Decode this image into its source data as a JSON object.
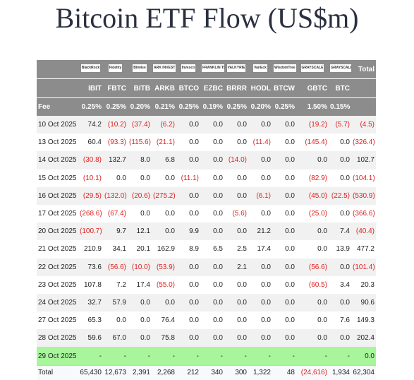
{
  "title": "Bitcoin ETF Flow (US$m)",
  "table": {
    "issuers": [
      "BlackRock",
      "Fidelity",
      "Bitwise",
      "ARK INVEST",
      "Invesco",
      "FRANKLIN TEMPLETON",
      "VALKYRIE",
      "VanEck",
      "WisdomTree",
      "GRAYSCALE",
      "GRAYSCALE"
    ],
    "total_header": "Total",
    "tickers": [
      "IBIT",
      "FBTC",
      "BITB",
      "ARKB",
      "BTCO",
      "EZBC",
      "BRRR",
      "HODL",
      "BTCW",
      "GBTC",
      "BTC"
    ],
    "fee": {
      "label": "Fee",
      "values": [
        "0.25%",
        "0.25%",
        "0.20%",
        "0.21%",
        "0.25%",
        "0.19%",
        "0.25%",
        "0.20%",
        "0.25%",
        "1.50%",
        "0.15%"
      ]
    },
    "rows": [
      {
        "date": "10 Oct 2025",
        "values": [
          "74.2",
          "(10.2)",
          "(37.4)",
          "(6.2)",
          "0.0",
          "0.0",
          "0.0",
          "0.0",
          "0.0",
          "(19.2)",
          "(5.7)",
          "(4.5)"
        ]
      },
      {
        "date": "13 Oct 2025",
        "values": [
          "60.4",
          "(93.3)",
          "(115.6)",
          "(21.1)",
          "0.0",
          "0.0",
          "0.0",
          "(11.4)",
          "0.0",
          "(145.4)",
          "0.0",
          "(326.4)"
        ]
      },
      {
        "date": "14 Oct 2025",
        "values": [
          "(30.8)",
          "132.7",
          "8.0",
          "6.8",
          "0.0",
          "0.0",
          "(14.0)",
          "0.0",
          "0.0",
          "0.0",
          "0.0",
          "102.7"
        ]
      },
      {
        "date": "15 Oct 2025",
        "values": [
          "(10.1)",
          "0.0",
          "0.0",
          "0.0",
          "(11.1)",
          "0.0",
          "0.0",
          "0.0",
          "0.0",
          "(82.9)",
          "0.0",
          "(104.1)"
        ]
      },
      {
        "date": "16 Oct 2025",
        "values": [
          "(29.5)",
          "(132.0)",
          "(20.6)",
          "(275.2)",
          "0.0",
          "0.0",
          "0.0",
          "(6.1)",
          "0.0",
          "(45.0)",
          "(22.5)",
          "(530.9)"
        ]
      },
      {
        "date": "17 Oct 2025",
        "values": [
          "(268.6)",
          "(67.4)",
          "0.0",
          "0.0",
          "0.0",
          "0.0",
          "(5.6)",
          "0.0",
          "0.0",
          "(25.0)",
          "0.0",
          "(366.6)"
        ]
      },
      {
        "date": "20 Oct 2025",
        "values": [
          "(100.7)",
          "9.7",
          "12.1",
          "0.0",
          "9.9",
          "0.0",
          "0.0",
          "21.2",
          "0.0",
          "0.0",
          "7.4",
          "(40.4)"
        ]
      },
      {
        "date": "21 Oct 2025",
        "values": [
          "210.9",
          "34.1",
          "20.1",
          "162.9",
          "8.9",
          "6.5",
          "2.5",
          "17.4",
          "0.0",
          "0.0",
          "13.9",
          "477.2"
        ]
      },
      {
        "date": "22 Oct 2025",
        "values": [
          "73.6",
          "(56.6)",
          "(10.0)",
          "(53.9)",
          "0.0",
          "0.0",
          "2.1",
          "0.0",
          "0.0",
          "(56.6)",
          "0.0",
          "(101.4)"
        ]
      },
      {
        "date": "23 Oct 2025",
        "values": [
          "107.8",
          "7.2",
          "17.4",
          "(55.0)",
          "0.0",
          "0.0",
          "0.0",
          "0.0",
          "0.0",
          "(60.5)",
          "3.4",
          "20.3"
        ]
      },
      {
        "date": "24 Oct 2025",
        "values": [
          "32.7",
          "57.9",
          "0.0",
          "0.0",
          "0.0",
          "0.0",
          "0.0",
          "0.0",
          "0.0",
          "0.0",
          "0.0",
          "90.6"
        ]
      },
      {
        "date": "27 Oct 2025",
        "values": [
          "65.3",
          "0.0",
          "0.0",
          "76.4",
          "0.0",
          "0.0",
          "0.0",
          "0.0",
          "0.0",
          "0.0",
          "7.6",
          "149.3"
        ]
      },
      {
        "date": "28 Oct 2025",
        "values": [
          "59.6",
          "67.0",
          "0.0",
          "75.8",
          "0.0",
          "0.0",
          "0.0",
          "0.0",
          "0.0",
          "0.0",
          "0.0",
          "202.4"
        ]
      },
      {
        "date": "29 Oct 2025",
        "values": [
          "-",
          "-",
          "-",
          "-",
          "-",
          "-",
          "-",
          "-",
          "-",
          "-",
          "-",
          "0.0"
        ]
      }
    ],
    "total": {
      "label": "Total",
      "values": [
        "65,430",
        "12,673",
        "2,391",
        "2,268",
        "212",
        "340",
        "300",
        "1,322",
        "48",
        "(24,616)",
        "1,934",
        "62,304"
      ]
    }
  }
}
